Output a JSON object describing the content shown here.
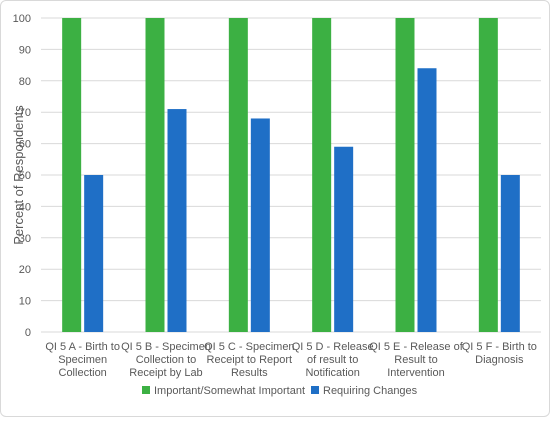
{
  "chart_data": {
    "type": "bar",
    "title": "",
    "xlabel": "",
    "ylabel": "Percent of Respondents",
    "ylim": [
      0,
      100
    ],
    "yticks": [
      0,
      10,
      20,
      30,
      40,
      50,
      60,
      70,
      80,
      90,
      100
    ],
    "grid": true,
    "legend_position": "bottom",
    "categories": [
      [
        "QI 5 A - Birth to",
        "Specimen",
        "Collection"
      ],
      [
        "QI 5 B - Specimen",
        "Collection to",
        "Receipt by Lab"
      ],
      [
        "QI 5 C - Specimen",
        "Receipt to Report",
        "Results"
      ],
      [
        "QI 5 D - Release",
        "of result to",
        "Notification"
      ],
      [
        "QI 5 E - Release of",
        "Result to",
        "Intervention"
      ],
      [
        "QI 5 F - Birth to",
        "Diagnosis"
      ]
    ],
    "series": [
      {
        "name": "Important/Somewhat Important",
        "color": "#3cb043",
        "values": [
          100,
          100,
          100,
          100,
          100,
          100
        ]
      },
      {
        "name": "Requiring Changes",
        "color": "#1f6fc6",
        "values": [
          50,
          71,
          68,
          59,
          84,
          50
        ]
      }
    ]
  }
}
